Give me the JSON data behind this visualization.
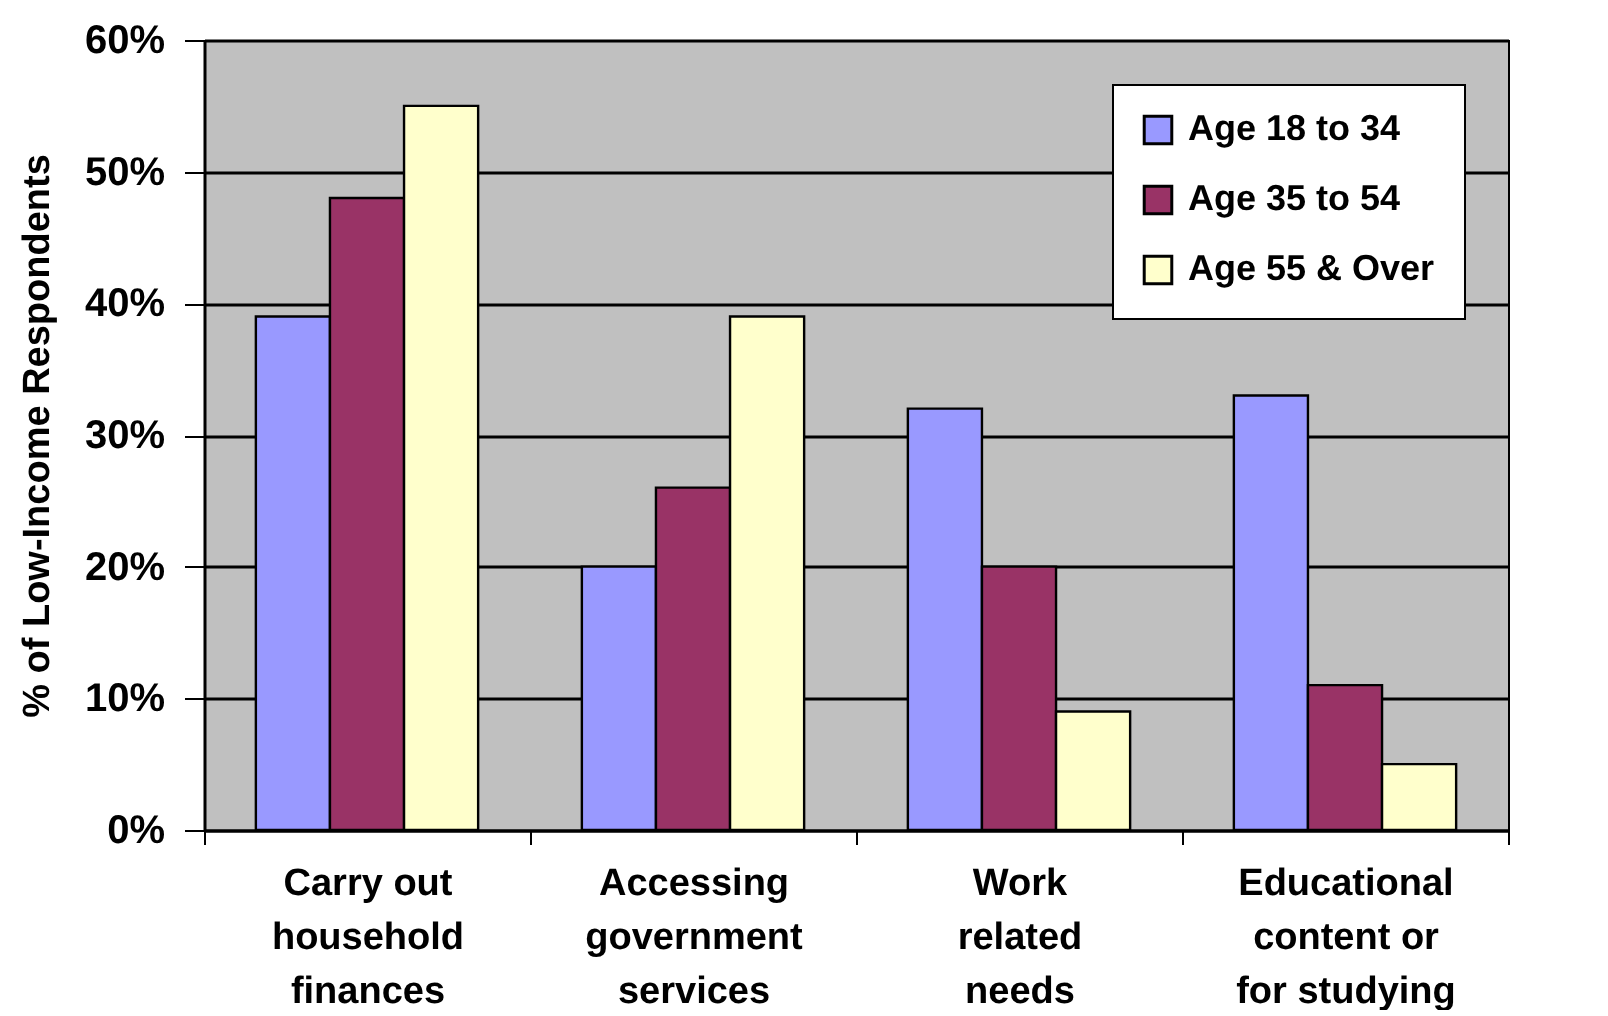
{
  "chart_data": {
    "type": "bar",
    "ylabel": "% of Low-Income Respondents",
    "categories": [
      "Carry out household finances",
      "Accessing government services",
      "Work related needs",
      "Educational content or for studying"
    ],
    "series": [
      {
        "name": "Age 18 to 34",
        "color": "#9999ff",
        "values": [
          39,
          20,
          32,
          33
        ]
      },
      {
        "name": "Age 35 to 54",
        "color": "#993366",
        "values": [
          48,
          26,
          20,
          11
        ]
      },
      {
        "name": "Age 55 & Over",
        "color": "#ffffcc",
        "values": [
          55,
          39,
          9,
          5
        ]
      }
    ],
    "ylim": [
      0,
      60
    ],
    "yticks": [
      {
        "value": 0,
        "label": "0%"
      },
      {
        "value": 10,
        "label": "10%"
      },
      {
        "value": 20,
        "label": "20%"
      },
      {
        "value": 30,
        "label": "30%"
      },
      {
        "value": 40,
        "label": "40%"
      },
      {
        "value": 50,
        "label": "50%"
      },
      {
        "value": 60,
        "label": "60%"
      }
    ],
    "grid": "y",
    "legend": "top right"
  }
}
